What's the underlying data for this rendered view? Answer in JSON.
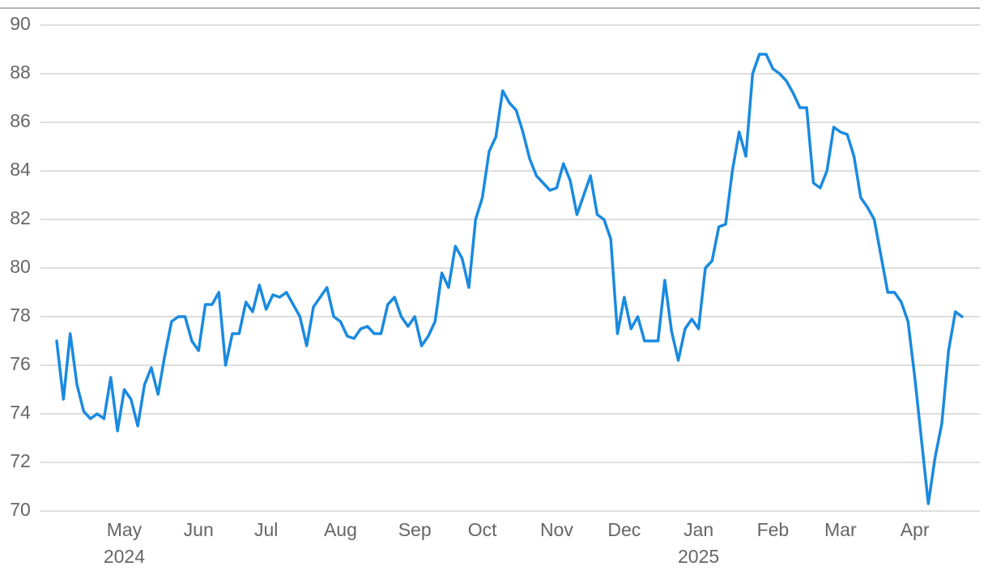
{
  "chart_data": {
    "type": "line",
    "categories": [
      null,
      null,
      null,
      null,
      null,
      null,
      null,
      null,
      null,
      null,
      "May",
      null,
      null,
      null,
      null,
      null,
      null,
      null,
      null,
      null,
      null,
      "Jun",
      null,
      null,
      null,
      null,
      null,
      null,
      null,
      null,
      null,
      "Jul",
      null,
      null,
      null,
      null,
      null,
      null,
      null,
      null,
      null,
      null,
      "Aug",
      null,
      null,
      null,
      null,
      null,
      null,
      null,
      null,
      null,
      null,
      "Sep",
      null,
      null,
      null,
      null,
      null,
      null,
      null,
      null,
      null,
      "Oct",
      null,
      null,
      null,
      null,
      null,
      null,
      null,
      null,
      null,
      null,
      "Nov",
      null,
      null,
      null,
      null,
      null,
      null,
      null,
      null,
      null,
      "Dec",
      null,
      null,
      null,
      null,
      null,
      null,
      null,
      null,
      null,
      null,
      "Jan",
      null,
      null,
      null,
      null,
      null,
      null,
      null,
      null,
      null,
      null,
      "Feb",
      null,
      null,
      null,
      null,
      null,
      null,
      null,
      null,
      null,
      "Mar",
      null,
      null,
      null,
      null,
      null,
      null,
      null,
      null,
      null,
      null,
      "Apr",
      null,
      null,
      null,
      null,
      null,
      null,
      null
    ],
    "category_years": [
      null,
      null,
      null,
      null,
      null,
      null,
      null,
      null,
      null,
      null,
      "2024",
      null,
      null,
      null,
      null,
      null,
      null,
      null,
      null,
      null,
      null,
      null,
      null,
      null,
      null,
      null,
      null,
      null,
      null,
      null,
      null,
      null,
      null,
      null,
      null,
      null,
      null,
      null,
      null,
      null,
      null,
      null,
      null,
      null,
      null,
      null,
      null,
      null,
      null,
      null,
      null,
      null,
      null,
      null,
      null,
      null,
      null,
      null,
      null,
      null,
      null,
      null,
      null,
      null,
      null,
      null,
      null,
      null,
      null,
      null,
      null,
      null,
      null,
      null,
      null,
      null,
      null,
      null,
      null,
      null,
      null,
      null,
      null,
      null,
      null,
      null,
      null,
      null,
      null,
      null,
      null,
      null,
      null,
      null,
      null,
      "2025",
      null,
      null,
      null,
      null,
      null,
      null,
      null,
      null,
      null,
      null,
      null,
      null,
      null,
      null,
      null,
      null,
      null,
      null,
      null,
      null,
      null,
      null,
      null,
      null,
      null,
      null,
      null,
      null,
      null,
      null,
      null,
      null,
      null,
      null,
      null,
      null,
      null,
      null,
      null
    ],
    "values": [
      77.0,
      74.6,
      77.3,
      75.2,
      74.1,
      73.8,
      74.0,
      73.8,
      75.5,
      73.3,
      75.0,
      74.6,
      73.5,
      75.2,
      75.9,
      74.8,
      76.4,
      77.8,
      78.0,
      78.0,
      77.0,
      76.6,
      78.5,
      78.5,
      79.0,
      76.0,
      77.3,
      77.3,
      78.6,
      78.2,
      79.3,
      78.3,
      78.9,
      78.8,
      79.0,
      78.5,
      78.0,
      76.8,
      78.4,
      78.8,
      79.2,
      78.0,
      77.8,
      77.2,
      77.1,
      77.5,
      77.6,
      77.3,
      77.3,
      78.5,
      78.8,
      78.0,
      77.6,
      78.0,
      76.8,
      77.2,
      77.8,
      79.8,
      79.2,
      80.9,
      80.4,
      79.2,
      82.0,
      82.9,
      84.8,
      85.4,
      87.3,
      86.8,
      86.5,
      85.6,
      84.5,
      83.8,
      83.5,
      83.2,
      83.3,
      84.3,
      83.6,
      82.2,
      83.0,
      83.8,
      82.2,
      82.0,
      81.2,
      77.3,
      78.8,
      77.5,
      78.0,
      77.0,
      77.0,
      77.0,
      79.5,
      77.4,
      76.2,
      77.5,
      77.9,
      77.5,
      80.0,
      80.3,
      81.7,
      81.8,
      84.0,
      85.6,
      84.6,
      88.0,
      88.8,
      88.8,
      88.2,
      88.0,
      87.7,
      87.2,
      86.6,
      86.6,
      83.5,
      83.3,
      84.0,
      85.8,
      85.6,
      85.5,
      84.6,
      82.9,
      82.5,
      82.0,
      80.5,
      79.0,
      79.0,
      78.6,
      77.8,
      75.5,
      72.9,
      70.3,
      72.2,
      73.6,
      76.6,
      78.2,
      78.0
    ],
    "color": "#1a8ae0",
    "ylim": [
      70,
      90
    ],
    "yticks": [
      70,
      72,
      74,
      76,
      78,
      80,
      82,
      84,
      86,
      88,
      90
    ],
    "grid": true
  }
}
